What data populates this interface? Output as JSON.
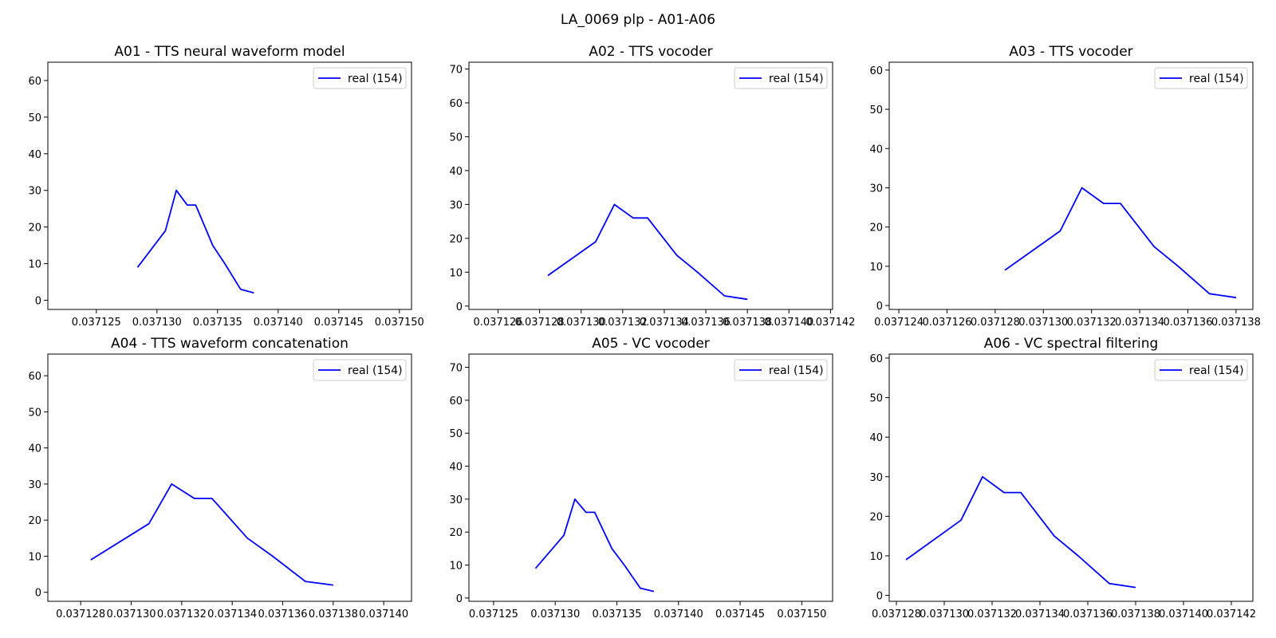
{
  "figure": {
    "suptitle": "LA_0069 plp - A01-A06"
  },
  "chart_data": [
    {
      "type": "line",
      "title": "A01 - TTS neural waveform model",
      "xlim": [
        0.037121,
        0.037151
      ],
      "ylim": [
        -2.5,
        65
      ],
      "xticks": [
        0.037125,
        0.03713,
        0.037135,
        0.03714,
        0.037145,
        0.03715
      ],
      "xtick_labels": [
        "0.037125",
        "0.037130",
        "0.037135",
        "0.037140",
        "0.037145",
        "0.037150"
      ],
      "yticks": [
        0,
        10,
        20,
        30,
        40,
        50,
        60
      ],
      "ytick_labels": [
        "0",
        "10",
        "20",
        "30",
        "40",
        "50",
        "60"
      ],
      "legend_position": "upper-right",
      "series": [
        {
          "name": "real (154)",
          "color": "#0000ff",
          "x": [
            0.0371284,
            0.0371307,
            0.0371316,
            0.0371325,
            0.0371332,
            0.0371346,
            0.0371356,
            0.0371369,
            0.037138
          ],
          "y": [
            9,
            19,
            30,
            26,
            26,
            15,
            10,
            3,
            2
          ]
        }
      ]
    },
    {
      "type": "line",
      "title": "A02 - TTS vocoder",
      "xlim": [
        0.0371246,
        0.0371421
      ],
      "ylim": [
        -1,
        72
      ],
      "xticks": [
        0.037126,
        0.037128,
        0.03713,
        0.037132,
        0.037134,
        0.037136,
        0.037138,
        0.03714,
        0.037142
      ],
      "xtick_labels": [
        "0.037126",
        "0.037128",
        "0.037130",
        "0.037132",
        "0.037134",
        "0.037136",
        "0.037138",
        "0.037140",
        "0.037142"
      ],
      "yticks": [
        0,
        10,
        20,
        30,
        40,
        50,
        60,
        70
      ],
      "ytick_labels": [
        "0",
        "10",
        "20",
        "30",
        "40",
        "50",
        "60",
        "70"
      ],
      "legend_position": "upper-right",
      "series": [
        {
          "name": "real (154)",
          "color": "#0000ff",
          "x": [
            0.0371284,
            0.0371307,
            0.0371316,
            0.0371325,
            0.0371332,
            0.0371346,
            0.0371356,
            0.0371369,
            0.037138
          ],
          "y": [
            9,
            19,
            30,
            26,
            26,
            15,
            10,
            3,
            2
          ]
        }
      ]
    },
    {
      "type": "line",
      "title": "A03 - TTS vocoder",
      "xlim": [
        0.0371236,
        0.0371387
      ],
      "ylim": [
        -1,
        62
      ],
      "xticks": [
        0.037124,
        0.037126,
        0.037128,
        0.03713,
        0.037132,
        0.037134,
        0.037136,
        0.037138
      ],
      "xtick_labels": [
        "0.037124",
        "0.037126",
        "0.037128",
        "0.037130",
        "0.037132",
        "0.037134",
        "0.037136",
        "0.037138"
      ],
      "yticks": [
        0,
        10,
        20,
        30,
        40,
        50,
        60
      ],
      "ytick_labels": [
        "0",
        "10",
        "20",
        "30",
        "40",
        "50",
        "60"
      ],
      "legend_position": "upper-right",
      "series": [
        {
          "name": "real (154)",
          "color": "#0000ff",
          "x": [
            0.0371284,
            0.0371307,
            0.0371316,
            0.0371325,
            0.0371332,
            0.0371346,
            0.0371356,
            0.0371369,
            0.037138
          ],
          "y": [
            9,
            19,
            30,
            26,
            26,
            15,
            10,
            3,
            2
          ]
        }
      ]
    },
    {
      "type": "line",
      "title": "A04 - TTS waveform concatenation",
      "xlim": [
        0.0371267,
        0.0371411
      ],
      "ylim": [
        -2.5,
        66
      ],
      "xticks": [
        0.037128,
        0.03713,
        0.037132,
        0.037134,
        0.037136,
        0.037138,
        0.03714
      ],
      "xtick_labels": [
        "0.037128",
        "0.037130",
        "0.037132",
        "0.037134",
        "0.037136",
        "0.037138",
        "0.037140"
      ],
      "yticks": [
        0,
        10,
        20,
        30,
        40,
        50,
        60
      ],
      "ytick_labels": [
        "0",
        "10",
        "20",
        "30",
        "40",
        "50",
        "60"
      ],
      "legend_position": "upper-right",
      "series": [
        {
          "name": "real (154)",
          "color": "#0000ff",
          "x": [
            0.0371284,
            0.0371307,
            0.0371316,
            0.0371325,
            0.0371332,
            0.0371346,
            0.0371356,
            0.0371369,
            0.037138
          ],
          "y": [
            9,
            19,
            30,
            26,
            26,
            15,
            10,
            3,
            2
          ]
        }
      ]
    },
    {
      "type": "line",
      "title": "A05 - VC vocoder",
      "xlim": [
        0.037123,
        0.0371525
      ],
      "ylim": [
        -1,
        74
      ],
      "xticks": [
        0.037125,
        0.03713,
        0.037135,
        0.03714,
        0.037145,
        0.03715
      ],
      "xtick_labels": [
        "0.037125",
        "0.037130",
        "0.037135",
        "0.037140",
        "0.037145",
        "0.037150"
      ],
      "yticks": [
        0,
        10,
        20,
        30,
        40,
        50,
        60,
        70
      ],
      "ytick_labels": [
        "0",
        "10",
        "20",
        "30",
        "40",
        "50",
        "60",
        "70"
      ],
      "legend_position": "upper-right",
      "series": [
        {
          "name": "real (154)",
          "color": "#0000ff",
          "x": [
            0.0371284,
            0.0371307,
            0.0371316,
            0.0371325,
            0.0371332,
            0.0371346,
            0.0371356,
            0.0371369,
            0.037138
          ],
          "y": [
            9,
            19,
            30,
            26,
            26,
            15,
            10,
            3,
            2
          ]
        }
      ]
    },
    {
      "type": "line",
      "title": "A06 - VC spectral filtering",
      "xlim": [
        0.0371277,
        0.0371429
      ],
      "ylim": [
        -1.5,
        61
      ],
      "xticks": [
        0.037128,
        0.03713,
        0.037132,
        0.037134,
        0.037136,
        0.037138,
        0.03714,
        0.037142
      ],
      "xtick_labels": [
        "0.037128",
        "0.037130",
        "0.037132",
        "0.037134",
        "0.037136",
        "0.037138",
        "0.037140",
        "0.037142"
      ],
      "yticks": [
        0,
        10,
        20,
        30,
        40,
        50,
        60
      ],
      "ytick_labels": [
        "0",
        "10",
        "20",
        "30",
        "40",
        "50",
        "60"
      ],
      "legend_position": "upper-right",
      "series": [
        {
          "name": "real (154)",
          "color": "#0000ff",
          "x": [
            0.0371284,
            0.0371307,
            0.0371316,
            0.0371325,
            0.0371332,
            0.0371346,
            0.0371356,
            0.0371369,
            0.037138
          ],
          "y": [
            9,
            19,
            30,
            26,
            26,
            15,
            10,
            3,
            2
          ]
        }
      ]
    }
  ]
}
